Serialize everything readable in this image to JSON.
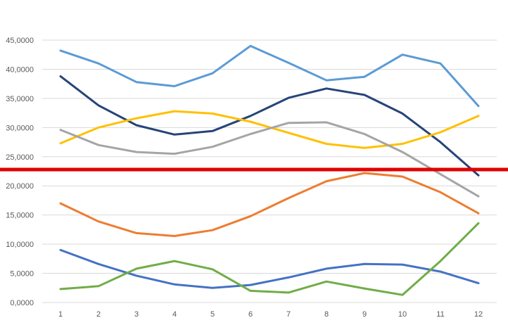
{
  "chart_data": {
    "type": "line",
    "x": [
      1,
      2,
      3,
      4,
      5,
      6,
      7,
      8,
      9,
      10,
      11,
      12
    ],
    "x_tick_labels": [
      "1",
      "2",
      "3",
      "4",
      "5",
      "6",
      "7",
      "8",
      "9",
      "10",
      "11",
      "12"
    ],
    "ylim": [
      0,
      45
    ],
    "y_ticks": [
      0,
      5,
      10,
      15,
      20,
      25,
      30,
      35,
      40,
      45
    ],
    "y_tick_labels": [
      "0,0000",
      "5,0000",
      "10,0000",
      "15,0000",
      "20,0000",
      "25,0000",
      "30,0000",
      "35,0000",
      "40,0000",
      "45,0000"
    ],
    "grid": true,
    "legend": "none",
    "series": [
      {
        "color": "#5b9bd5",
        "values": [
          43.2,
          41.0,
          37.8,
          37.1,
          39.3,
          44.0,
          41.1,
          38.1,
          38.7,
          42.5,
          41.0,
          33.7
        ]
      },
      {
        "color": "#264478",
        "values": [
          38.8,
          33.8,
          30.4,
          28.8,
          29.4,
          32.0,
          35.1,
          36.7,
          35.6,
          32.4,
          27.5,
          21.8
        ]
      },
      {
        "color": "#ffc000",
        "values": [
          27.3,
          30.0,
          31.6,
          32.8,
          32.4,
          31.0,
          29.1,
          27.2,
          26.5,
          27.2,
          29.2,
          32.0
        ]
      },
      {
        "color": "#a5a5a5",
        "values": [
          29.6,
          27.0,
          25.8,
          25.5,
          26.7,
          28.9,
          30.8,
          30.9,
          28.9,
          25.8,
          22.0,
          18.2
        ]
      },
      {
        "color": "#ed7d31",
        "values": [
          17.0,
          13.9,
          11.9,
          11.4,
          12.4,
          14.8,
          17.9,
          20.8,
          22.2,
          21.6,
          18.9,
          15.3
        ]
      },
      {
        "color": "#4472c4",
        "values": [
          9.0,
          6.6,
          4.6,
          3.1,
          2.5,
          3.0,
          4.3,
          5.8,
          6.6,
          6.5,
          5.3,
          3.3
        ]
      },
      {
        "color": "#70ad47",
        "values": [
          2.3,
          2.8,
          5.8,
          7.1,
          5.7,
          2.0,
          1.7,
          3.6,
          2.4,
          1.3,
          7.1,
          13.6
        ]
      }
    ],
    "reference_line": {
      "color": "#e00000",
      "value": 22.8
    }
  }
}
